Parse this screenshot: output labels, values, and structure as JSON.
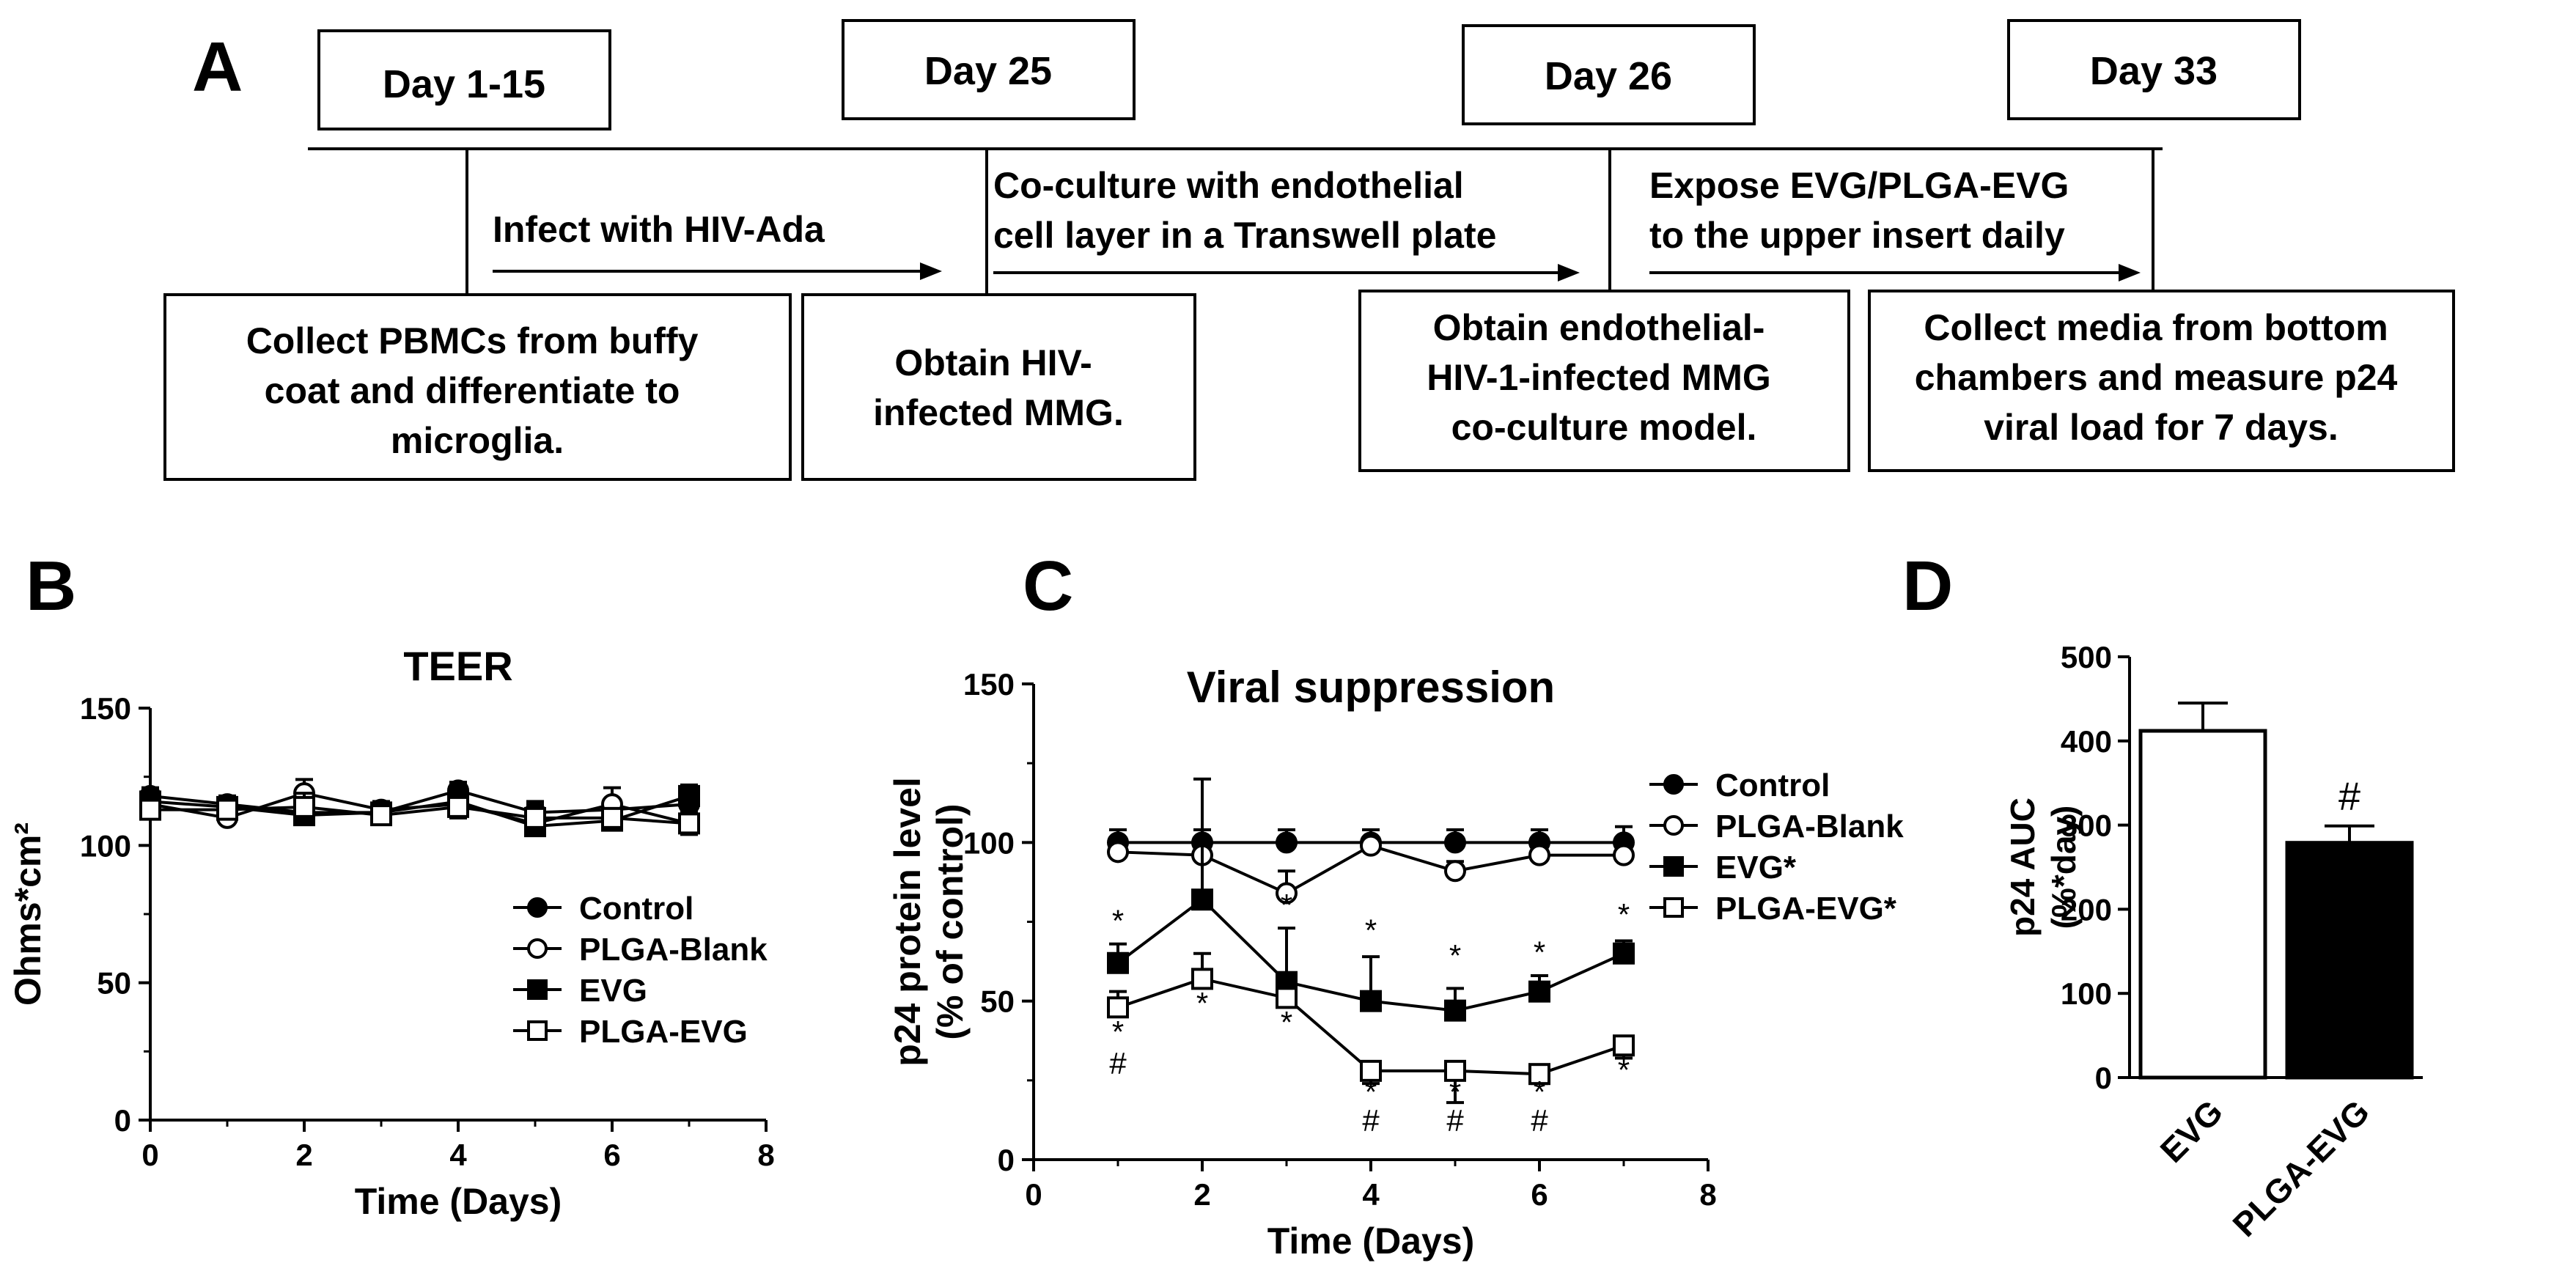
{
  "panelA": {
    "letter": "A",
    "days": [
      "Day 1-15",
      "Day 25",
      "Day 26",
      "Day 33"
    ],
    "arrows": [
      [
        "Infect with HIV-Ada"
      ],
      [
        "Co-culture with endothelial",
        "cell layer in a Transwell plate"
      ],
      [
        "Expose EVG/PLGA-EVG",
        "to the upper insert daily"
      ]
    ],
    "boxes": [
      [
        "Collect PBMCs from buffy",
        "coat and differentiate to",
        "microglia."
      ],
      [
        "Obtain HIV-",
        "infected MMG."
      ],
      [
        "Obtain endothelial-",
        "HIV-1-infected MMG",
        "co-culture model."
      ],
      [
        "Collect media from bottom",
        "chambers and measure p24",
        "viral load for 7 days."
      ]
    ]
  },
  "chart_data": [
    {
      "panel": "B",
      "type": "line",
      "title": "TEER",
      "xlabel": "Time (Days)",
      "ylabel": "Ohms*cm²",
      "xlim": [
        0,
        8
      ],
      "ylim": [
        0,
        150
      ],
      "xticks": [
        "0",
        "2",
        "4",
        "6",
        "8"
      ],
      "yticks": [
        "0",
        "50",
        "100",
        "150"
      ],
      "x": [
        0,
        1,
        2,
        3,
        4,
        5,
        6,
        7
      ],
      "series": [
        {
          "name": "Control",
          "marker": "filled-circle",
          "values": [
            118,
            115,
            112,
            112,
            120,
            112,
            113,
            115
          ],
          "errors": [
            3,
            3,
            3,
            3,
            3,
            3,
            3,
            3
          ]
        },
        {
          "name": "PLGA-Blank",
          "marker": "open-circle",
          "values": [
            115,
            110,
            119,
            113,
            115,
            108,
            115,
            108
          ],
          "errors": [
            4,
            6,
            5,
            3,
            4,
            8,
            6,
            4
          ]
        },
        {
          "name": "EVG",
          "marker": "filled-square",
          "values": [
            116,
            114,
            111,
            112,
            116,
            107,
            109,
            118
          ],
          "errors": [
            4,
            4,
            4,
            3,
            4,
            5,
            4,
            4
          ]
        },
        {
          "name": "PLGA-EVG",
          "marker": "open-square",
          "values": [
            113,
            113,
            114,
            111,
            114,
            110,
            110,
            108
          ],
          "errors": [
            4,
            4,
            5,
            3,
            4,
            5,
            4,
            4
          ]
        }
      ]
    },
    {
      "panel": "C",
      "type": "line",
      "title": "Viral suppression",
      "xlabel": "Time (Days)",
      "ylabel": [
        "p24 protein level",
        "(% of control)"
      ],
      "xlim": [
        0,
        8
      ],
      "ylim": [
        0,
        150
      ],
      "xticks": [
        "0",
        "2",
        "4",
        "6",
        "8"
      ],
      "yticks": [
        "0",
        "50",
        "100",
        "150"
      ],
      "x": [
        1,
        2,
        3,
        4,
        5,
        6,
        7
      ],
      "series": [
        {
          "name": "Control",
          "marker": "filled-circle",
          "values": [
            100,
            100,
            100,
            100,
            100,
            100,
            100
          ],
          "errors": [
            4,
            4,
            4,
            4,
            4,
            4,
            5
          ]
        },
        {
          "name": "PLGA-Blank",
          "marker": "open-circle",
          "values": [
            97,
            96,
            84,
            99,
            91,
            96,
            96
          ],
          "errors": [
            3,
            5,
            7,
            5,
            3,
            4,
            4
          ]
        },
        {
          "name": "EVG*",
          "marker": "filled-square",
          "values": [
            62,
            82,
            56,
            50,
            47,
            53,
            65
          ],
          "errors": [
            6,
            38,
            17,
            14,
            7,
            5,
            4
          ]
        },
        {
          "name": "PLGA-EVG*",
          "marker": "open-square",
          "values": [
            48,
            57,
            51,
            28,
            28,
            27,
            36
          ],
          "errors": [
            5,
            8,
            6,
            4,
            10,
            3,
            4
          ]
        }
      ],
      "annotations": [
        {
          "x": 1,
          "y": 72,
          "text": "*"
        },
        {
          "x": 3,
          "y": 77,
          "text": "*"
        },
        {
          "x": 4,
          "y": 69,
          "text": "*"
        },
        {
          "x": 5,
          "y": 61,
          "text": "*"
        },
        {
          "x": 6,
          "y": 62,
          "text": "*"
        },
        {
          "x": 7,
          "y": 74,
          "text": "*"
        },
        {
          "x": 1,
          "y": 37,
          "text": "*"
        },
        {
          "x": 1,
          "y": 27,
          "text": "#"
        },
        {
          "x": 2,
          "y": 46,
          "text": "*"
        },
        {
          "x": 3,
          "y": 40,
          "text": "*"
        },
        {
          "x": 4,
          "y": 18,
          "text": "*"
        },
        {
          "x": 4,
          "y": 9,
          "text": "#"
        },
        {
          "x": 5,
          "y": 18,
          "text": "*"
        },
        {
          "x": 5,
          "y": 9,
          "text": "#"
        },
        {
          "x": 6,
          "y": 18,
          "text": "*"
        },
        {
          "x": 6,
          "y": 9,
          "text": "#"
        },
        {
          "x": 7,
          "y": 25,
          "text": "*"
        }
      ]
    },
    {
      "panel": "D",
      "type": "bar",
      "title": "",
      "xlabel": "",
      "ylabel": [
        "p24 AUC",
        "(%*day)"
      ],
      "ylim": [
        0,
        500
      ],
      "yticks": [
        "0",
        "100",
        "200",
        "300",
        "400",
        "500"
      ],
      "categories": [
        "EVG",
        "PLGA-EVG"
      ],
      "values": [
        412,
        279
      ],
      "errors": [
        33,
        20
      ],
      "fills": [
        "#ffffff",
        "#000000"
      ],
      "annotations": [
        {
          "category": "PLGA-EVG",
          "text": "#"
        }
      ]
    }
  ]
}
